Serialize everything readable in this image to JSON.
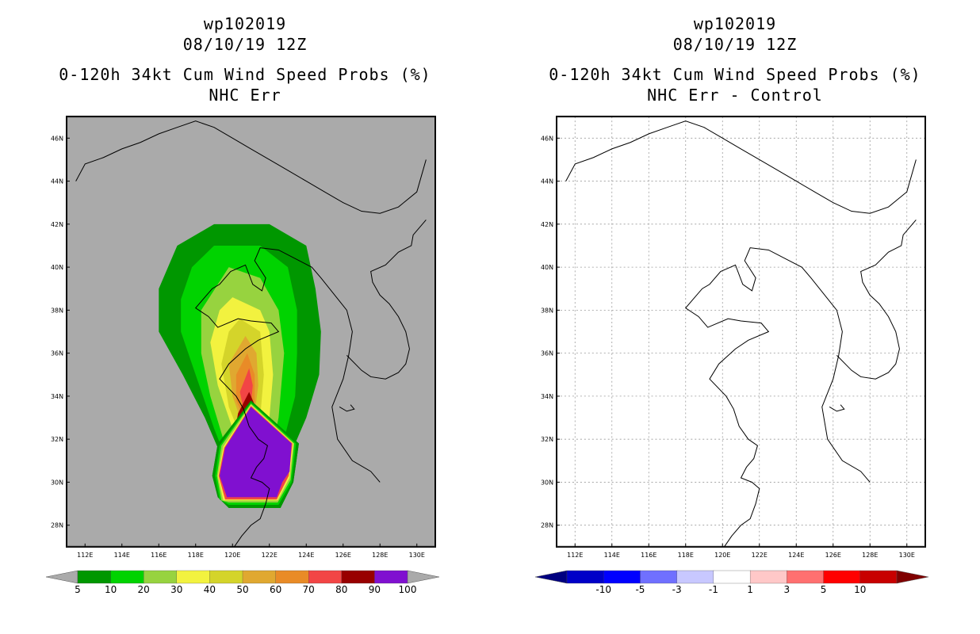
{
  "chart_data": [
    {
      "type": "heatmap",
      "title_lines": [
        "wp102019",
        "08/10/19 12Z",
        "0-120h 34kt Cum Wind Speed Probs (%)",
        "NHC Err"
      ],
      "xlabel": "",
      "ylabel": "",
      "x_ticks": [
        "112E",
        "114E",
        "116E",
        "118E",
        "120E",
        "122E",
        "124E",
        "126E",
        "128E",
        "130E"
      ],
      "y_ticks": [
        "28N",
        "30N",
        "32N",
        "34N",
        "36N",
        "38N",
        "40N",
        "42N",
        "44N",
        "46N"
      ],
      "lon_range": [
        111,
        131
      ],
      "lat_range": [
        27,
        47
      ],
      "background_color": "#aaaaaa",
      "colorbar": {
        "labels": [
          "5",
          "10",
          "20",
          "30",
          "40",
          "50",
          "60",
          "70",
          "80",
          "90",
          "100"
        ],
        "colors": [
          "#009700",
          "#00d300",
          "#97d33f",
          "#f2f23f",
          "#d4d42a",
          "#e0a830",
          "#e98b27",
          "#f24545",
          "#980000",
          "#8010d0"
        ],
        "end_color": "#aaaaaa"
      },
      "contours": [
        {
          "level": 5,
          "color": "#009700",
          "points": [
            [
              119,
              42
            ],
            [
              122,
              42
            ],
            [
              124,
              41
            ],
            [
              124.5,
              39
            ],
            [
              124.8,
              37
            ],
            [
              124.7,
              35
            ],
            [
              124,
              33
            ],
            [
              123,
              31
            ],
            [
              122.5,
              29.8
            ],
            [
              121.2,
              29
            ],
            [
              120,
              30
            ],
            [
              118.5,
              33
            ],
            [
              117.3,
              35
            ],
            [
              116,
              37
            ],
            [
              116,
              39
            ],
            [
              117,
              41
            ]
          ]
        },
        {
          "level": 10,
          "color": "#00d300",
          "points": [
            [
              119,
              41
            ],
            [
              121.5,
              41
            ],
            [
              123,
              40
            ],
            [
              123.5,
              38
            ],
            [
              123.5,
              36
            ],
            [
              123.4,
              34
            ],
            [
              122.5,
              31
            ],
            [
              122,
              30
            ],
            [
              121,
              29.5
            ],
            [
              120,
              30.3
            ],
            [
              119,
              32.5
            ],
            [
              118,
              35
            ],
            [
              117.2,
              37
            ],
            [
              117.2,
              38.5
            ],
            [
              117.8,
              40
            ]
          ]
        },
        {
          "level": 20,
          "color": "#97d33f",
          "points": [
            [
              119.8,
              40
            ],
            [
              121.5,
              39.5
            ],
            [
              122.5,
              38
            ],
            [
              122.8,
              36
            ],
            [
              122.5,
              33
            ],
            [
              122,
              31
            ],
            [
              121,
              30
            ],
            [
              120.3,
              30.6
            ],
            [
              119.5,
              32
            ],
            [
              118.8,
              34
            ],
            [
              118.3,
              36
            ],
            [
              118.3,
              38
            ]
          ]
        },
        {
          "level": 30,
          "color": "#f2f23f",
          "points": [
            [
              120,
              38.6
            ],
            [
              121.5,
              38
            ],
            [
              122,
              37
            ],
            [
              122.2,
              35
            ],
            [
              122,
              33
            ],
            [
              121.5,
              31.5
            ],
            [
              121,
              30.5
            ],
            [
              120.5,
              31
            ],
            [
              120,
              32.5
            ],
            [
              119.2,
              34.5
            ],
            [
              118.8,
              36.5
            ],
            [
              119.3,
              38
            ]
          ]
        },
        {
          "level": 40,
          "color": "#d4d42a",
          "points": [
            [
              120.4,
              37.6
            ],
            [
              121.5,
              37
            ],
            [
              121.7,
              35
            ],
            [
              121.5,
              33
            ],
            [
              121,
              31.5
            ],
            [
              120.5,
              32
            ],
            [
              119.8,
              33.5
            ],
            [
              119.4,
              35.5
            ],
            [
              119.8,
              37
            ]
          ]
        },
        {
          "level": 50,
          "color": "#e0a830",
          "points": [
            [
              120.7,
              36.8
            ],
            [
              121.3,
              36
            ],
            [
              121.4,
              34.5
            ],
            [
              121.1,
              32.5
            ],
            [
              120.5,
              32.8
            ],
            [
              120,
              34
            ],
            [
              119.8,
              35.5
            ]
          ]
        },
        {
          "level": 60,
          "color": "#e98b27",
          "points": [
            [
              120.8,
              36
            ],
            [
              121.2,
              35
            ],
            [
              121.2,
              33.5
            ],
            [
              120.7,
              32.8
            ],
            [
              120.2,
              33.8
            ],
            [
              120.2,
              35
            ]
          ]
        },
        {
          "level": 70,
          "color": "#f24545",
          "points": [
            [
              120.9,
              35.3
            ],
            [
              121.1,
              34.5
            ],
            [
              121,
              33.6
            ],
            [
              120.6,
              33.4
            ],
            [
              120.4,
              34.2
            ]
          ]
        },
        {
          "level": 90,
          "color": "#980000",
          "points": [
            [
              120.9,
              34.2
            ],
            [
              121.5,
              33
            ],
            [
              122,
              31.5
            ],
            [
              121,
              31.3
            ],
            [
              120,
              31.8
            ],
            [
              120.3,
              33.2
            ]
          ]
        },
        {
          "level": 100,
          "color": "#8010d0",
          "points": [
            [
              121,
              33.5
            ],
            [
              123.2,
              31.8
            ],
            [
              123.1,
              30.5
            ],
            [
              122.7,
              30
            ],
            [
              122.4,
              29.3
            ],
            [
              119.7,
              29.3
            ],
            [
              119.3,
              30.3
            ],
            [
              119.6,
              31.6
            ]
          ]
        }
      ],
      "outer_bands": [
        {
          "color": "#009700",
          "points": [
            [
              119.2,
              29.3
            ],
            [
              119.8,
              28.8
            ],
            [
              122.6,
              28.8
            ],
            [
              123.3,
              30
            ],
            [
              123.6,
              31.8
            ],
            [
              121,
              33.8
            ],
            [
              119.2,
              31.8
            ],
            [
              118.9,
              30.3
            ]
          ]
        },
        {
          "color": "#00d300",
          "points": [
            [
              119.3,
              29.2
            ],
            [
              119.8,
              28.95
            ],
            [
              122.5,
              28.95
            ],
            [
              123.2,
              30
            ],
            [
              123.45,
              31.8
            ],
            [
              121,
              33.7
            ],
            [
              119.3,
              31.7
            ],
            [
              119.05,
              30.3
            ]
          ]
        },
        {
          "color": "#97d33f",
          "points": [
            [
              119.4,
              29.15
            ],
            [
              119.8,
              29.05
            ],
            [
              122.45,
              29.05
            ],
            [
              123.15,
              30.1
            ],
            [
              123.35,
              31.8
            ],
            [
              121,
              33.65
            ],
            [
              119.4,
              31.7
            ],
            [
              119.15,
              30.3
            ]
          ]
        },
        {
          "color": "#f2f23f",
          "points": [
            [
              119.5,
              29.15
            ],
            [
              119.75,
              29.15
            ],
            [
              122.45,
              29.15
            ],
            [
              123.1,
              30.2
            ],
            [
              123.3,
              31.8
            ],
            [
              121,
              33.6
            ],
            [
              119.5,
              31.65
            ],
            [
              119.2,
              30.3
            ]
          ]
        },
        {
          "color": "#f24545",
          "points": [
            [
              119.6,
              29.2
            ],
            [
              119.7,
              29.2
            ],
            [
              122.4,
              29.2
            ],
            [
              123.05,
              30.3
            ],
            [
              123.25,
              31.8
            ],
            [
              121,
              33.55
            ],
            [
              119.55,
              31.6
            ],
            [
              119.25,
              30.3
            ]
          ]
        }
      ]
    },
    {
      "type": "heatmap",
      "title_lines": [
        "wp102019",
        "08/10/19 12Z",
        "0-120h 34kt Cum Wind Speed Probs (%)",
        "NHC Err - Control"
      ],
      "xlabel": "",
      "ylabel": "",
      "x_ticks": [
        "112E",
        "114E",
        "116E",
        "118E",
        "120E",
        "122E",
        "124E",
        "126E",
        "128E",
        "130E"
      ],
      "y_ticks": [
        "28N",
        "30N",
        "32N",
        "34N",
        "36N",
        "38N",
        "40N",
        "42N",
        "44N",
        "46N"
      ],
      "lon_range": [
        111,
        131
      ],
      "lat_range": [
        27,
        47
      ],
      "background_color": "#ffffff",
      "colorbar": {
        "labels": [
          "-10",
          "-5",
          "-3",
          "-1",
          "1",
          "3",
          "5",
          "10"
        ],
        "colors": [
          "#0000c8",
          "#0000ff",
          "#7070ff",
          "#c8c8ff",
          "#ffffff",
          "#ffc8c8",
          "#ff7070",
          "#ff0000",
          "#c80000"
        ],
        "start_color": "#000080",
        "end_color": "#800000"
      },
      "contours": []
    }
  ],
  "coastline": [
    [
      [
        111.5,
        44
      ],
      [
        112,
        44.8
      ],
      [
        113,
        45.1
      ],
      [
        114,
        45.5
      ],
      [
        115,
        45.8
      ],
      [
        116,
        46.2
      ],
      [
        117,
        46.5
      ],
      [
        118,
        46.8
      ],
      [
        119,
        46.5
      ],
      [
        120,
        46
      ],
      [
        121,
        45.5
      ],
      [
        122,
        45
      ],
      [
        123,
        44.5
      ],
      [
        124,
        44
      ],
      [
        125,
        43.5
      ],
      [
        126,
        43
      ],
      [
        127,
        42.6
      ],
      [
        128,
        42.5
      ],
      [
        129,
        42.8
      ],
      [
        130,
        43.5
      ],
      [
        130.5,
        45
      ]
    ],
    [
      [
        128,
        30
      ],
      [
        127.5,
        30.5
      ],
      [
        126.5,
        31
      ],
      [
        125.7,
        32
      ],
      [
        125.4,
        33.5
      ],
      [
        126,
        34.8
      ],
      [
        126.3,
        35.9
      ],
      [
        126.5,
        37
      ],
      [
        126.2,
        38
      ],
      [
        124.8,
        39.5
      ],
      [
        124.3,
        40
      ],
      [
        122.5,
        40.8
      ],
      [
        121.5,
        40.9
      ],
      [
        121.2,
        40.3
      ],
      [
        121.8,
        39.5
      ],
      [
        121.6,
        38.9
      ],
      [
        121.1,
        39.2
      ],
      [
        120.7,
        40.1
      ],
      [
        119.9,
        39.8
      ],
      [
        119.3,
        39.2
      ],
      [
        118.9,
        39
      ],
      [
        118.5,
        38.6
      ],
      [
        118,
        38.1
      ],
      [
        118.7,
        37.7
      ],
      [
        119.2,
        37.2
      ],
      [
        120.3,
        37.6
      ],
      [
        121,
        37.5
      ],
      [
        122.1,
        37.4
      ],
      [
        122.5,
        37
      ],
      [
        121.4,
        36.6
      ],
      [
        120.7,
        36.2
      ],
      [
        119.8,
        35.5
      ],
      [
        119.3,
        34.8
      ],
      [
        120.2,
        34
      ],
      [
        120.6,
        33.4
      ],
      [
        120.9,
        32.6
      ],
      [
        121.4,
        32
      ],
      [
        121.9,
        31.7
      ],
      [
        121.7,
        31.1
      ],
      [
        121.3,
        30.7
      ],
      [
        121,
        30.2
      ],
      [
        121.6,
        30
      ],
      [
        122,
        29.7
      ],
      [
        121.8,
        29
      ],
      [
        121.5,
        28.3
      ],
      [
        121,
        28
      ],
      [
        120.5,
        27.5
      ],
      [
        120.1,
        27
      ]
    ],
    [
      [
        126.2,
        35.9
      ],
      [
        127,
        35.2
      ],
      [
        127.5,
        34.9
      ],
      [
        128.3,
        34.8
      ],
      [
        129,
        35.1
      ],
      [
        129.4,
        35.5
      ],
      [
        129.6,
        36.2
      ],
      [
        129.4,
        37
      ],
      [
        129,
        37.7
      ],
      [
        128.5,
        38.3
      ],
      [
        128,
        38.7
      ],
      [
        127.6,
        39.3
      ],
      [
        127.5,
        39.8
      ],
      [
        128.3,
        40.1
      ],
      [
        129,
        40.7
      ],
      [
        129.7,
        41
      ],
      [
        129.8,
        41.5
      ],
      [
        130.5,
        42.2
      ]
    ],
    [
      [
        125.8,
        33.5
      ],
      [
        126.2,
        33.3
      ],
      [
        126.6,
        33.4
      ],
      [
        126.4,
        33.6
      ]
    ]
  ]
}
